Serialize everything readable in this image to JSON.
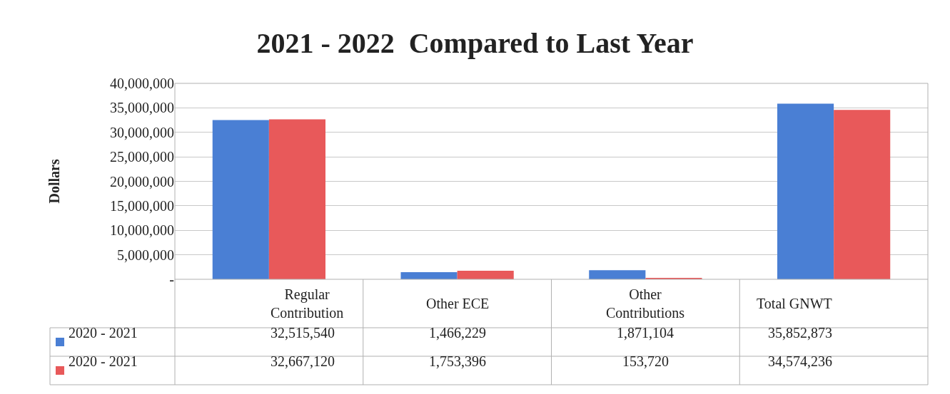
{
  "chart_data": {
    "type": "bar",
    "title": "2021 - 2022  Compared to Last Year",
    "ylabel": "Dollars",
    "categories": [
      "Regular Contribution",
      "Other ECE",
      "Other Contributions",
      "Total GNWT"
    ],
    "series": [
      {
        "name": "2020 - 2021",
        "color": "#4a7fd4",
        "values": [
          32515540,
          1466229,
          1871104,
          35852873
        ],
        "value_labels": [
          "32,515,540",
          "1,466,229",
          "1,871,104",
          "35,852,873"
        ]
      },
      {
        "name": "2020 - 2021",
        "color": "#e8595a",
        "values": [
          32667120,
          1753396,
          153720,
          34574236
        ],
        "value_labels": [
          "32,667,120",
          "1,753,396",
          "153,720",
          "34,574,236"
        ]
      }
    ],
    "ylim": [
      0,
      40000000
    ],
    "yticks": [
      {
        "value": 0,
        "label": "-"
      },
      {
        "value": 5000000,
        "label": "5,000,000"
      },
      {
        "value": 10000000,
        "label": "10,000,000"
      },
      {
        "value": 15000000,
        "label": "15,000,000"
      },
      {
        "value": 20000000,
        "label": "20,000,000"
      },
      {
        "value": 25000000,
        "label": "25,000,000"
      },
      {
        "value": 30000000,
        "label": "30,000,000"
      },
      {
        "value": 35000000,
        "label": "35,000,000"
      },
      {
        "value": 40000000,
        "label": "40,000,000"
      }
    ],
    "grid": "y"
  }
}
